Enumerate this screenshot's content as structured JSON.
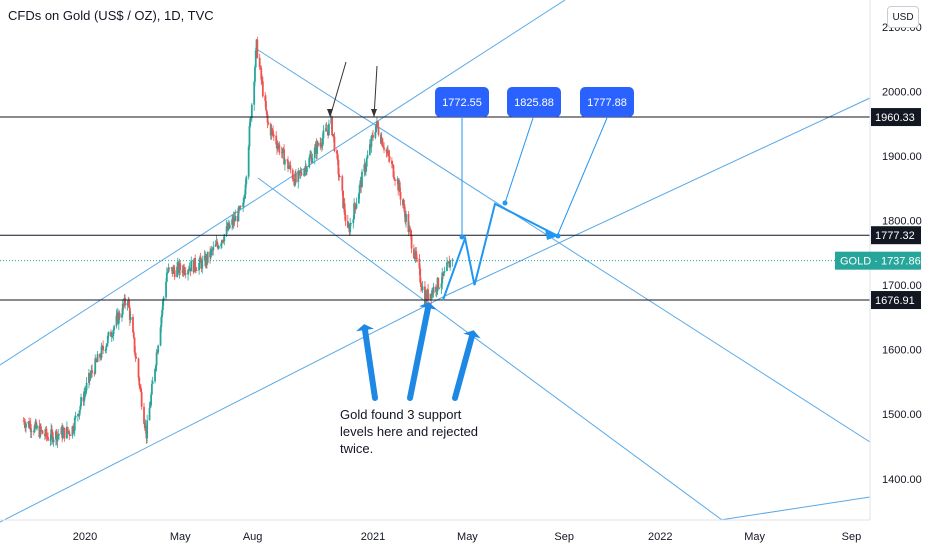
{
  "header": {
    "title": "CFDs on Gold (US$ / OZ), 1D, TVC",
    "currency": "USD"
  },
  "annotation": {
    "note_lines": [
      "Gold found 3 support",
      "levels here and rejected",
      "twice."
    ]
  },
  "chart_data": {
    "type": "candlestick",
    "title": "CFDs on Gold (US$ / OZ), 1D, TVC",
    "x_tick_labels": [
      "2020",
      "May",
      "Aug",
      "2021",
      "May",
      "Sep",
      "2022",
      "May",
      "Sep"
    ],
    "y_tick_labels": [
      "2100.00",
      "2000.00",
      "1900.00",
      "1800.00",
      "1700.00",
      "1600.00",
      "1500.00",
      "1400.00"
    ],
    "y_ticks": [
      2100,
      2000,
      1900,
      1800,
      1700,
      1600,
      1500,
      1400
    ],
    "ylim": [
      1340,
      2140
    ],
    "grid": false,
    "price_path": [
      [
        "2019-10-15",
        1490
      ],
      [
        "2019-11-15",
        1465
      ],
      [
        "2019-12-15",
        1475
      ],
      [
        "2020-01-08",
        1560
      ],
      [
        "2020-02-24",
        1680
      ],
      [
        "2020-03-19",
        1470
      ],
      [
        "2020-04-14",
        1720
      ],
      [
        "2020-06-01",
        1735
      ],
      [
        "2020-07-20",
        1820
      ],
      [
        "2020-08-06",
        2070
      ],
      [
        "2020-08-20",
        1950
      ],
      [
        "2020-09-25",
        1860
      ],
      [
        "2020-11-09",
        1950
      ],
      [
        "2020-11-30",
        1780
      ],
      [
        "2021-01-05",
        1950
      ],
      [
        "2021-02-01",
        1860
      ],
      [
        "2021-03-08",
        1680
      ],
      [
        "2021-03-31",
        1710
      ],
      [
        "2021-04-12",
        1745
      ]
    ],
    "horizontal_levels": [
      {
        "label": "1960.33",
        "value": 1960.33
      },
      {
        "label": "1777.32",
        "value": 1777.32
      },
      {
        "label": "1676.91",
        "value": 1676.91
      }
    ],
    "last_price": {
      "label": "GOLD",
      "value_label": "1737.86",
      "value": 1737.86
    },
    "projection_path": [
      [
        "2021-03-31",
        1676.91
      ],
      [
        "2021-04-28",
        1772.55
      ],
      [
        "2021-05-10",
        1700
      ],
      [
        "2021-06-05",
        1825.88
      ],
      [
        "2021-07-20",
        1777.88
      ]
    ],
    "targets": [
      {
        "label": "1772.55",
        "value": 1772.55
      },
      {
        "label": "1825.88",
        "value": 1825.88
      },
      {
        "label": "1777.88",
        "value": 1777.88
      }
    ],
    "colors": {
      "up": "#26a69a",
      "down": "#ef5350",
      "trend_line": "#5aa9e6",
      "projection": "#2196f3",
      "target_box": "#2962ff",
      "last_price": "#26a69a",
      "arrow": "#1e88e5",
      "level_line": "#131722"
    }
  }
}
